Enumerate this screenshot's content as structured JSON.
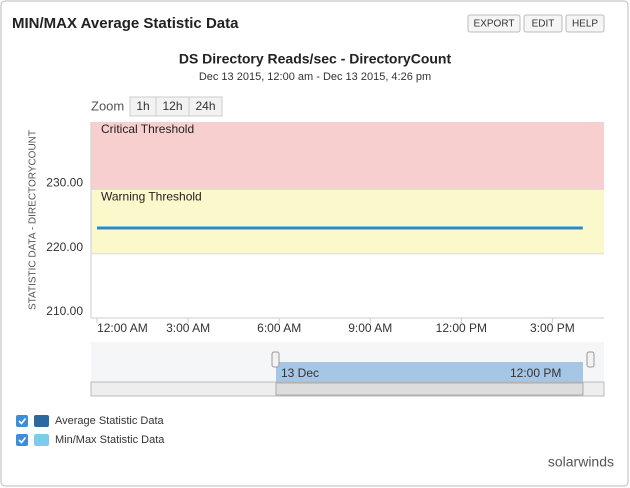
{
  "widget": {
    "title": "MIN/MAX Average Statistic Data",
    "buttons": [
      "EXPORT",
      "EDIT",
      "HELP"
    ],
    "zoom_label": "Zoom",
    "zoom_buttons": [
      "1h",
      "12h",
      "24h"
    ],
    "navigator_labels": [
      "13 Dec",
      "12:00 PM"
    ],
    "logo": "solarwinds"
  },
  "chart_data": {
    "type": "line",
    "title": "DS Directory Reads/sec - DirectoryCount",
    "subtitle": "Dec 13 2015, 12:00 am - Dec 13 2015, 4:26 pm",
    "y_label": "STATISTIC DATA - DIRECTORYCOUNT",
    "x": [
      0,
      1,
      2,
      3,
      4,
      5,
      6,
      7,
      8,
      9,
      10,
      11,
      12,
      13,
      14,
      15,
      16
    ],
    "series": [
      {
        "name": "Average Statistic Data",
        "color": "#2a6aa0",
        "values": [
          224,
          224,
          224,
          224,
          224,
          224,
          224,
          224,
          224,
          224,
          224,
          224,
          224,
          224,
          224,
          224,
          224
        ]
      },
      {
        "name": "Min/Max Statistic Data",
        "color": "#7ccbed",
        "values": [
          224,
          224,
          224,
          224,
          224,
          224,
          224,
          224,
          224,
          224,
          224,
          224,
          224,
          224,
          224,
          224,
          224
        ]
      }
    ],
    "bands": [
      {
        "label": "Critical Threshold",
        "from": 230,
        "to": 240.5,
        "color": "#f7cfcf"
      },
      {
        "label": "Warning Threshold",
        "from": 220,
        "to": 230,
        "color": "#fbf8cc"
      }
    ],
    "xlim": [
      -0.2,
      16.7
    ],
    "xticks": [
      {
        "value": 0,
        "label": "12:00 AM"
      },
      {
        "value": 3,
        "label": "3:00 AM"
      },
      {
        "value": 6,
        "label": "6:00 AM"
      },
      {
        "value": 9,
        "label": "9:00 AM"
      },
      {
        "value": 12,
        "label": "12:00 PM"
      },
      {
        "value": 15,
        "label": "3:00 PM"
      }
    ],
    "ylim": [
      210,
      240.5
    ],
    "yticks": [
      {
        "value": 210,
        "label": "210.00"
      },
      {
        "value": 220,
        "label": "220.00"
      },
      {
        "value": 230,
        "label": "230.00"
      }
    ],
    "grid": true
  }
}
